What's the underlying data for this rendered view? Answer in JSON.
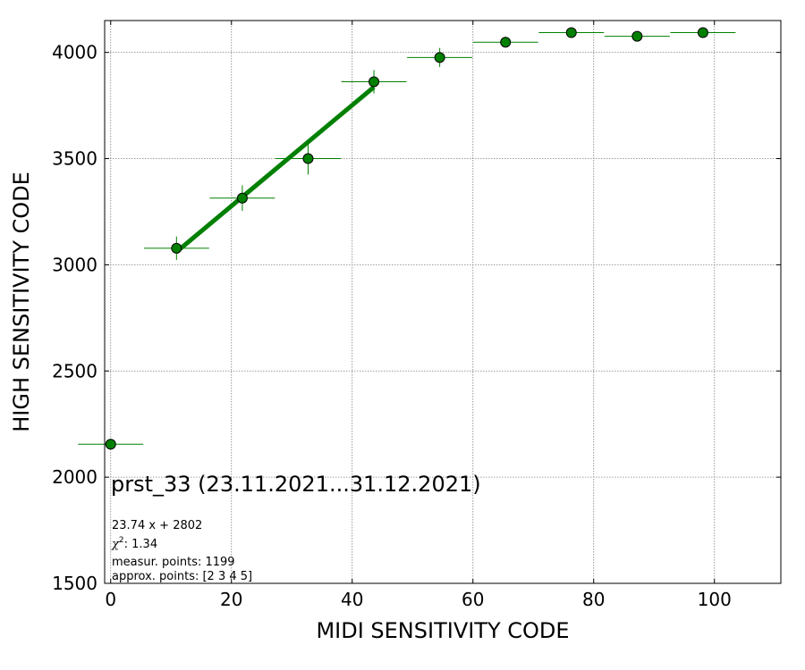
{
  "chart_data": {
    "type": "scatter",
    "xlabel": "MIDI SENSITIVITY CODE",
    "ylabel": "HIGH SENSITIVITY CODE",
    "xlim": [
      -1,
      111
    ],
    "ylim": [
      1500,
      4150
    ],
    "x_ticks": [
      0,
      20,
      40,
      60,
      80,
      100
    ],
    "y_ticks": [
      1500,
      2000,
      2500,
      3000,
      3500,
      4000
    ],
    "grid": true,
    "points": [
      {
        "x": 0,
        "y": 2155,
        "xerr": 5.4,
        "yerr": 0
      },
      {
        "x": 10.9,
        "y": 3078,
        "xerr": 5.4,
        "yerr": 55
      },
      {
        "x": 21.8,
        "y": 3314,
        "xerr": 5.4,
        "yerr": 60
      },
      {
        "x": 32.7,
        "y": 3500,
        "xerr": 5.4,
        "yerr": 75
      },
      {
        "x": 43.6,
        "y": 3862,
        "xerr": 5.4,
        "yerr": 55
      },
      {
        "x": 54.5,
        "y": 3976,
        "xerr": 5.4,
        "yerr": 45
      },
      {
        "x": 65.4,
        "y": 4048,
        "xerr": 5.4,
        "yerr": 25
      },
      {
        "x": 76.3,
        "y": 4093,
        "xerr": 5.4,
        "yerr": 0
      },
      {
        "x": 87.2,
        "y": 4076,
        "xerr": 5.4,
        "yerr": 0
      },
      {
        "x": 98.1,
        "y": 4093,
        "xerr": 5.4,
        "yerr": 0
      }
    ],
    "fit_line": {
      "slope": 23.74,
      "intercept": 2802,
      "x_range": [
        10.9,
        43.6
      ]
    },
    "colors": {
      "marker": "#008000",
      "errorbar": "#008000",
      "fit": "#008000",
      "grid": "#808080"
    },
    "annotations": {
      "title": "prst_33 (23.11.2021...31.12.2021)",
      "fit_formula": "23.74 x + 2802",
      "chi2_value": "1.34",
      "measur_points": "measur. points: 1199",
      "approx_points": "approx. points: [2 3 4 5]"
    }
  }
}
